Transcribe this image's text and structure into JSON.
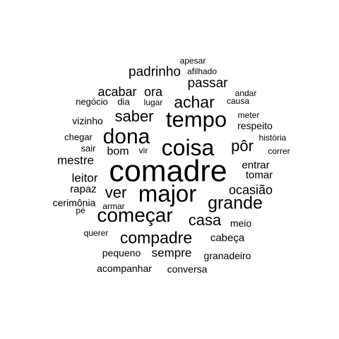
{
  "word_cloud": {
    "text_color": "#000000",
    "background": "#ffffff",
    "words": [
      {
        "text": "comadre"
      },
      {
        "text": "major"
      },
      {
        "text": "coisa"
      },
      {
        "text": "tempo"
      },
      {
        "text": "dona"
      },
      {
        "text": "começar"
      },
      {
        "text": "grande"
      },
      {
        "text": "compadre"
      },
      {
        "text": "achar"
      },
      {
        "text": "saber"
      },
      {
        "text": "casa"
      },
      {
        "text": "pôr"
      },
      {
        "text": "ver"
      },
      {
        "text": "padrinho"
      },
      {
        "text": "passar"
      },
      {
        "text": "ocasião"
      },
      {
        "text": "acabar"
      },
      {
        "text": "ora"
      },
      {
        "text": "mestre"
      },
      {
        "text": "leitor"
      },
      {
        "text": "sempre"
      },
      {
        "text": "bom"
      },
      {
        "text": "rapaz"
      },
      {
        "text": "tomar"
      },
      {
        "text": "entrar"
      },
      {
        "text": "cabeça"
      },
      {
        "text": "acompanhar"
      },
      {
        "text": "respeito"
      },
      {
        "text": "conversa"
      },
      {
        "text": "pequeno"
      },
      {
        "text": "cerimônia"
      },
      {
        "text": "meio"
      },
      {
        "text": "granadeiro"
      },
      {
        "text": "vizinho"
      },
      {
        "text": "negócio"
      },
      {
        "text": "dia"
      },
      {
        "text": "sair"
      },
      {
        "text": "chegar"
      },
      {
        "text": "querer"
      },
      {
        "text": "lugar"
      },
      {
        "text": "afilhado"
      },
      {
        "text": "apesar"
      },
      {
        "text": "andar"
      },
      {
        "text": "causa"
      },
      {
        "text": "meter"
      },
      {
        "text": "história"
      },
      {
        "text": "correr"
      },
      {
        "text": "armar"
      },
      {
        "text": "vir"
      },
      {
        "text": "pé"
      }
    ]
  }
}
